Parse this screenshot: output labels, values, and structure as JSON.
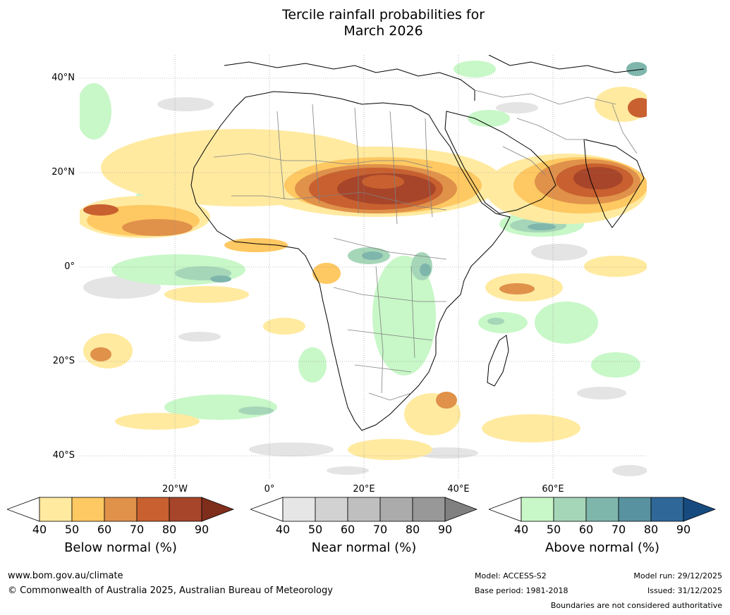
{
  "title_line1": "Tercile rainfall probabilities for",
  "title_line2": "March 2026",
  "lat_labels": [
    "40°N",
    "20°N",
    "0°",
    "20°S",
    "40°S"
  ],
  "lon_labels": [
    "20°W",
    "0°",
    "20°E",
    "40°E",
    "60°E"
  ],
  "colorbars": {
    "below": {
      "title": "Below normal (%)",
      "ticks": [
        "40",
        "50",
        "60",
        "70",
        "80",
        "90"
      ],
      "colors": [
        "#ffffff",
        "#ffeaa0",
        "#fec862",
        "#e0914a",
        "#c8602f",
        "#a7452a",
        "#7f2e1c"
      ]
    },
    "near": {
      "title": "Near normal (%)",
      "ticks": [
        "40",
        "50",
        "60",
        "70",
        "80",
        "90"
      ],
      "colors": [
        "#ffffff",
        "#e6e6e6",
        "#d2d2d2",
        "#bfbfbf",
        "#ababab",
        "#989898",
        "#808080"
      ]
    },
    "above": {
      "title": "Above normal (%)",
      "ticks": [
        "40",
        "50",
        "60",
        "70",
        "80",
        "90"
      ],
      "colors": [
        "#ffffff",
        "#c8f7c8",
        "#a5d6b8",
        "#7fb6ac",
        "#5892a0",
        "#2f6898",
        "#174b80"
      ]
    }
  },
  "footer": {
    "url": "www.bom.gov.au/climate",
    "copyright": "© Commonwealth of Australia 2025, Australian Bureau of Meteorology",
    "model": "Model: ACCESS-S2",
    "base_period": "Base period: 1981-2018",
    "model_run": "Model run: 29/12/2025",
    "issued": "Issued: 31/12/2025",
    "disclaimer": "Boundaries are not considered authoritative"
  }
}
